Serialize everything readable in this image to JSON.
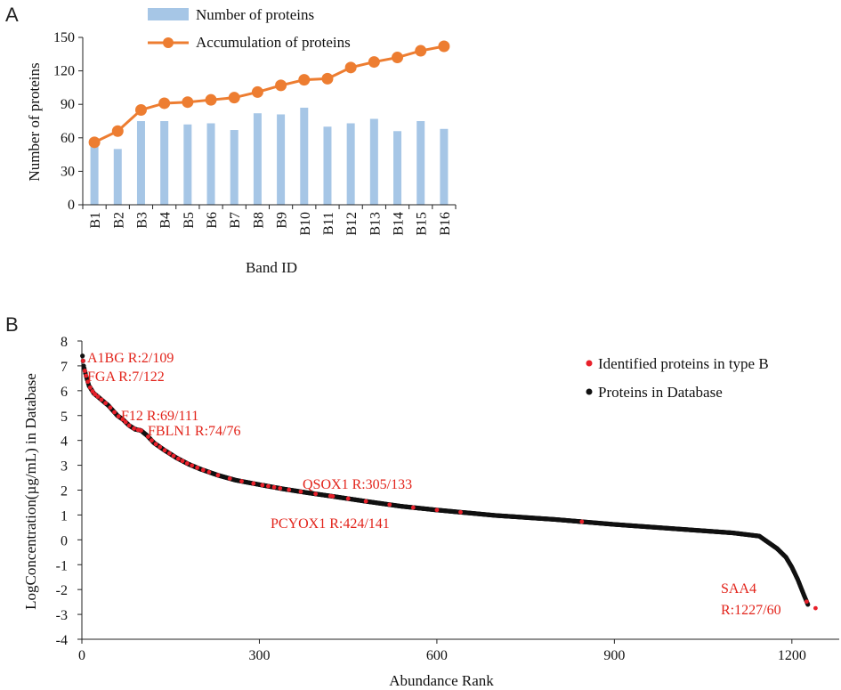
{
  "panels": {
    "a_letter": "A",
    "b_letter": "B"
  },
  "colors": {
    "bar": "#a6c6e6",
    "line": "#ed7d31",
    "red_dot": "#e8202a",
    "black_dot": "#111111",
    "annot_text": "#e2231a"
  },
  "chart_data": [
    {
      "id": "A",
      "type": "bar",
      "xlabel": "Band ID",
      "ylabel": "Number of proteins",
      "ylim": [
        0,
        150
      ],
      "yticks": [
        0,
        30,
        60,
        90,
        120,
        150
      ],
      "categories": [
        "B1",
        "B2",
        "B3",
        "B4",
        "B5",
        "B6",
        "B7",
        "B8",
        "B9",
        "B10",
        "B11",
        "B12",
        "B13",
        "B14",
        "B15",
        "B16"
      ],
      "legend_position": "top-center",
      "series": [
        {
          "name": "Number of proteins",
          "type": "bar",
          "values": [
            56,
            50,
            75,
            75,
            72,
            73,
            67,
            82,
            81,
            87,
            70,
            73,
            77,
            66,
            75,
            68
          ]
        },
        {
          "name": "Accumulation of proteins",
          "type": "line",
          "values": [
            56,
            66,
            85,
            91,
            92,
            94,
            96,
            101,
            107,
            112,
            113,
            123,
            128,
            132,
            138,
            142
          ]
        }
      ]
    },
    {
      "id": "B",
      "type": "scatter",
      "xlabel": "Abundance Rank",
      "ylabel": "LogConcentration(µg/mL) in Database",
      "xlim": [
        0,
        1280
      ],
      "ylim": [
        -4,
        8
      ],
      "xticks": [
        0,
        300,
        600,
        900,
        1200
      ],
      "yticks": [
        -4,
        -3,
        -2,
        -1,
        0,
        1,
        2,
        3,
        4,
        5,
        6,
        7,
        8
      ],
      "legend_position": "top-right",
      "curve_knots": [
        [
          1,
          7.4
        ],
        [
          3,
          7.0
        ],
        [
          7,
          6.6
        ],
        [
          12,
          6.2
        ],
        [
          20,
          5.9
        ],
        [
          30,
          5.7
        ],
        [
          45,
          5.4
        ],
        [
          60,
          5.0
        ],
        [
          69,
          4.85
        ],
        [
          80,
          4.6
        ],
        [
          90,
          4.45
        ],
        [
          100,
          4.4
        ],
        [
          110,
          4.2
        ],
        [
          122,
          3.9
        ],
        [
          140,
          3.6
        ],
        [
          160,
          3.3
        ],
        [
          180,
          3.05
        ],
        [
          200,
          2.85
        ],
        [
          230,
          2.6
        ],
        [
          260,
          2.4
        ],
        [
          305,
          2.2
        ],
        [
          340,
          2.05
        ],
        [
          380,
          1.9
        ],
        [
          424,
          1.75
        ],
        [
          480,
          1.55
        ],
        [
          540,
          1.35
        ],
        [
          600,
          1.2
        ],
        [
          700,
          0.98
        ],
        [
          800,
          0.82
        ],
        [
          900,
          0.62
        ],
        [
          1000,
          0.45
        ],
        [
          1100,
          0.28
        ],
        [
          1145,
          0.15
        ],
        [
          1160,
          -0.1
        ],
        [
          1175,
          -0.35
        ],
        [
          1190,
          -0.7
        ],
        [
          1200,
          -1.1
        ],
        [
          1210,
          -1.6
        ],
        [
          1220,
          -2.2
        ],
        [
          1227,
          -2.6
        ]
      ],
      "series": [
        {
          "name": "Proteins in Database",
          "n_points": 1227
        },
        {
          "name": "Identified proteins in type B",
          "ranks": [
            2,
            5,
            7,
            10,
            14,
            18,
            22,
            27,
            33,
            40,
            48,
            55,
            62,
            69,
            74,
            80,
            88,
            95,
            100,
            112,
            118,
            125,
            132,
            140,
            148,
            155,
            163,
            170,
            178,
            186,
            195,
            205,
            215,
            230,
            250,
            270,
            290,
            305,
            315,
            325,
            335,
            350,
            370,
            395,
            420,
            424,
            450,
            480,
            520,
            560,
            600,
            640,
            845,
            1225,
            1240
          ],
          "extra_point": [
            1240,
            -2.75
          ]
        }
      ],
      "annotations": [
        {
          "text": "A1BG R:2/109",
          "x": 2,
          "y": 7.4
        },
        {
          "text": "FGA R:7/122",
          "x": 7,
          "y": 6.6
        },
        {
          "text": "F12 R:69/111",
          "x": 69,
          "y": 4.85
        },
        {
          "text": "FBLN1 R:74/76",
          "x": 74,
          "y": 4.8
        },
        {
          "text": "QSOX1 R:305/133",
          "x": 305,
          "y": 2.2
        },
        {
          "text": "PCYOX1 R:424/141",
          "x": 424,
          "y": 1.75
        },
        {
          "text": "SAA4",
          "x": 1227,
          "y": -2.6
        },
        {
          "text": "R:1227/60",
          "x": 1227,
          "y": -2.6
        }
      ]
    }
  ]
}
